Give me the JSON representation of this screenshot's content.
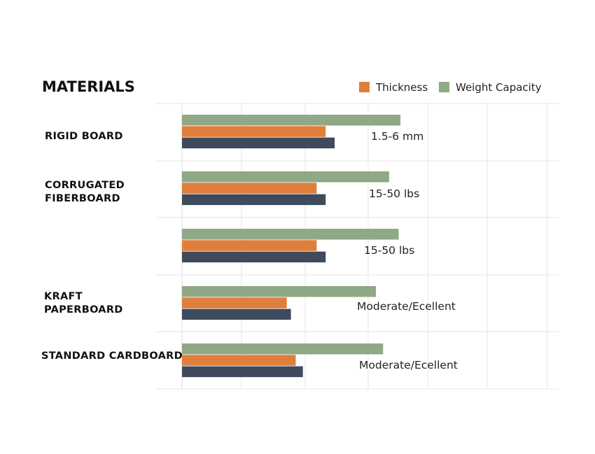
{
  "chart_data": {
    "type": "bar",
    "orientation": "horizontal",
    "title": "MATERIALS",
    "legend_position": "top-right",
    "grid": true,
    "xlim": [
      0,
      7
    ],
    "series": [
      {
        "name": "Weight Capacity",
        "color": "#8fa885",
        "values": [
          3.65,
          3.46,
          3.62,
          3.24,
          3.36
        ]
      },
      {
        "name": "Thickness",
        "color": "#e07f3c",
        "values": [
          2.4,
          2.25,
          2.25,
          1.75,
          1.9
        ]
      },
      {
        "color": "#3f4a5c",
        "values": [
          2.55,
          2.4,
          2.4,
          1.82,
          2.02
        ]
      }
    ],
    "legend": [
      {
        "label": "Thickness",
        "color": "#e07f3c"
      },
      {
        "label": "Weight Capacity",
        "color": "#8fa885"
      }
    ],
    "categories": [
      {
        "lines": [
          "RIGID BOARD"
        ],
        "value_label": "1.5-6 mm"
      },
      {
        "lines": [
          "CORRUGATED",
          "FIBERBOARD"
        ],
        "value_label": "15-50 lbs"
      },
      {
        "lines": [],
        "value_label": "15-50 lbs"
      },
      {
        "lines": [
          "KRAFT",
          "PAPERBOARD"
        ],
        "value_label": "Moderate/Ecellent"
      },
      {
        "lines": [
          "STANDARD CARDBOARD"
        ],
        "value_label": "Moderate/Ecellent"
      }
    ]
  }
}
